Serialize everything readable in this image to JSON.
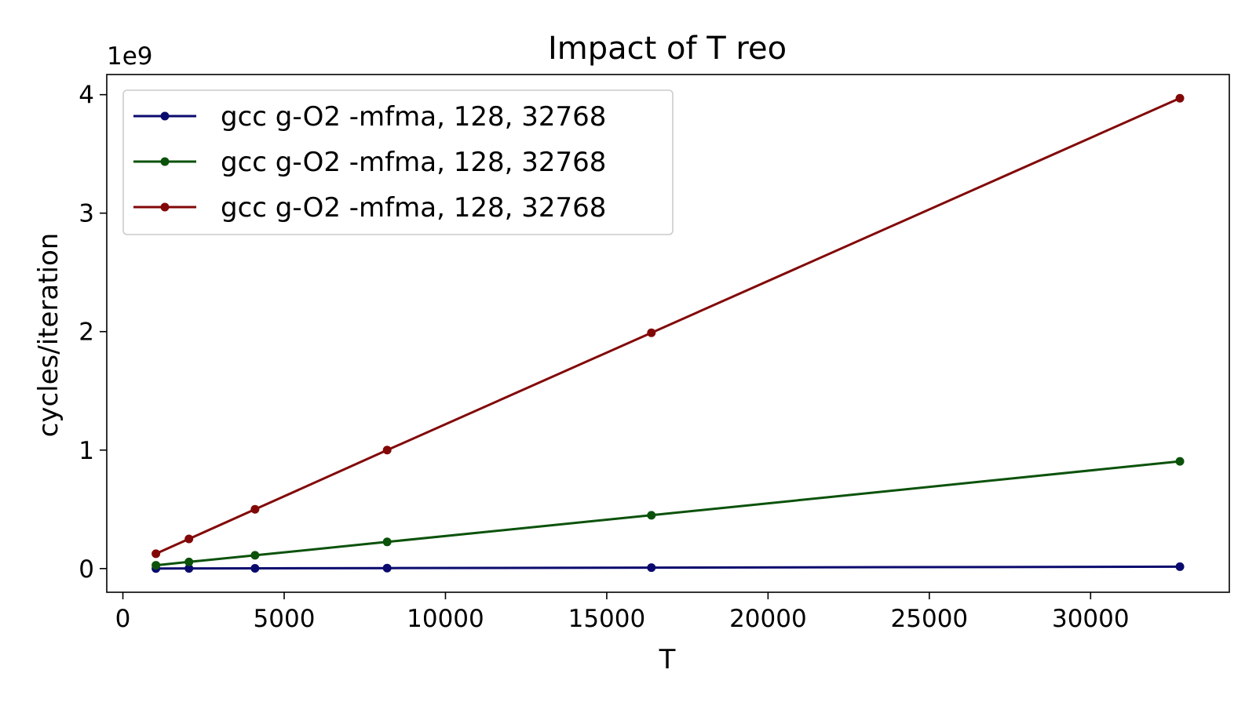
{
  "chart_data": {
    "type": "line",
    "title": "Impact of T reo",
    "xlabel": "T",
    "ylabel": "cycles/iteration",
    "y_offset_label": "1e9",
    "y_scale_factor": 1000000000,
    "xlim": [
      -500,
      34300
    ],
    "ylim": [
      -0.2,
      4.17
    ],
    "x_ticks": [
      0,
      5000,
      10000,
      15000,
      20000,
      25000,
      30000
    ],
    "y_ticks": [
      0,
      1,
      2,
      3,
      4
    ],
    "grid": false,
    "legend_position": "top-left",
    "x": [
      1024,
      2048,
      4096,
      8192,
      16384,
      32768
    ],
    "series": [
      {
        "name": "gcc g-O2 -mfma, 128, 32768",
        "color": "#0a0a6e",
        "values": [
          0.0005,
          0.001,
          0.002,
          0.004,
          0.008,
          0.016
        ]
      },
      {
        "name": "gcc g-O2 -mfma, 128, 32768",
        "color": "#0b520b",
        "values": [
          0.028,
          0.056,
          0.112,
          0.225,
          0.45,
          0.905
        ]
      },
      {
        "name": "gcc g-O2 -mfma, 128, 32768",
        "color": "#820808",
        "values": [
          0.125,
          0.25,
          0.5,
          1.0,
          1.99,
          3.97
        ]
      }
    ]
  }
}
